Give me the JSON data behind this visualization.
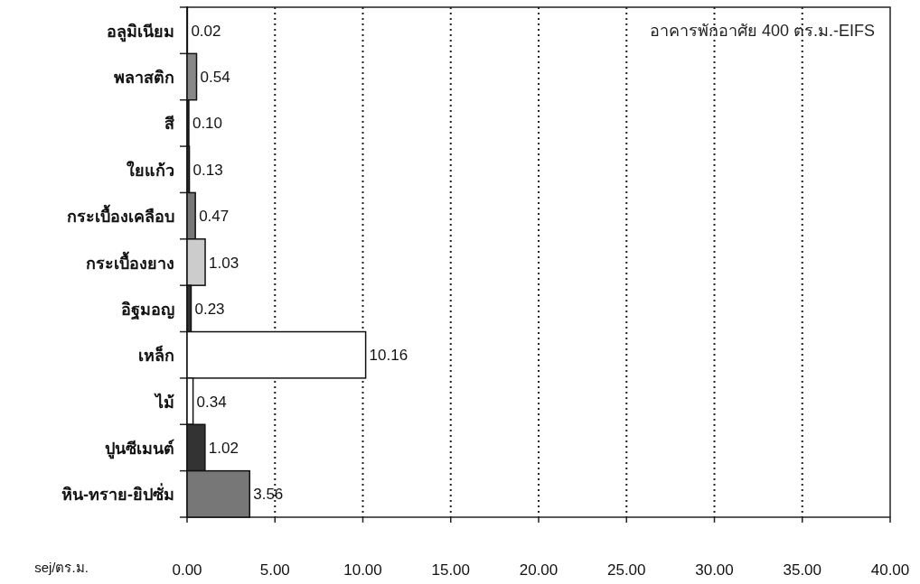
{
  "chart_data": {
    "type": "bar",
    "orientation": "horizontal",
    "title": "อาคารพักอาศัย 400 ตร.ม.-EIFS",
    "xlabel": "sej/ตร.ม.",
    "categories": [
      "อลูมิเนียม",
      "พลาสติก",
      "สี",
      "ใยแก้ว",
      "กระเบื้องเคลือบ",
      "กระเบื้องยาง",
      "อิฐมอญ",
      "เหล็ก",
      "ไม้",
      "ปูนซีเมนต์",
      "หิน-ทราย-ยิปซั่ม"
    ],
    "values": [
      0.02,
      0.54,
      0.1,
      0.13,
      0.47,
      1.03,
      0.23,
      10.16,
      0.34,
      1.02,
      3.56
    ],
    "value_labels": [
      "0.02",
      "0.54",
      "0.10",
      "0.13",
      "0.47",
      "1.03",
      "0.23",
      "10.16",
      "0.34",
      "1.02",
      "3.56"
    ],
    "colors": [
      "#333333",
      "#888888",
      "#333333",
      "#333333",
      "#777777",
      "#cccccc",
      "#333333",
      "#ffffff",
      "#ffffff",
      "#333333",
      "#777777"
    ],
    "xlim": [
      0,
      40
    ],
    "xticks": [
      {
        "value": 0,
        "label": "0.00"
      },
      {
        "value": 5,
        "label": "5.00"
      },
      {
        "value": 10,
        "label": "10.00"
      },
      {
        "value": 15,
        "label": "15.00"
      },
      {
        "value": 20,
        "label": "20.00"
      },
      {
        "value": 25,
        "label": "25.00"
      },
      {
        "value": 30,
        "label": "30.00"
      },
      {
        "value": 35,
        "label": "35.00"
      },
      {
        "value": 40,
        "label": "40.00"
      }
    ],
    "grid": "x"
  }
}
